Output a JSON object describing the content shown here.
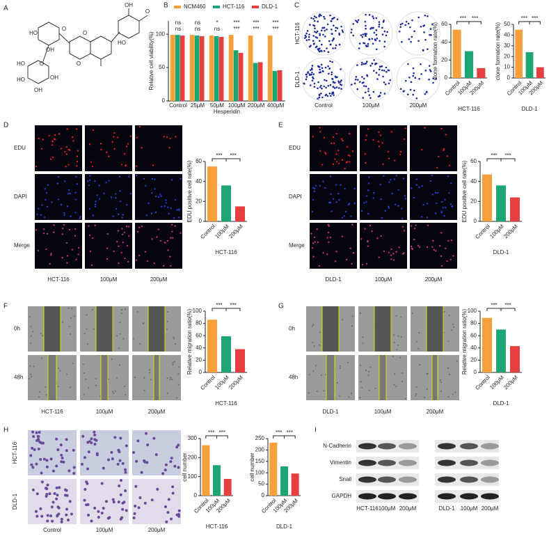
{
  "panel_labels": [
    "A",
    "B",
    "C",
    "D",
    "E",
    "F",
    "G",
    "H",
    "I"
  ],
  "panel_a": {
    "atoms": [
      "HO",
      "O",
      "OH",
      "O",
      "O",
      "HO",
      "OH",
      "O",
      "O",
      "HO",
      "HO",
      "OH",
      "OH"
    ]
  },
  "panel_c": {
    "rows": [
      "HCT-116",
      "DLD-1"
    ],
    "columns": [
      "Control",
      "100μM",
      "200μM"
    ]
  },
  "panel_d": {
    "rows": [
      "EDU",
      "DAPI",
      "Merge"
    ],
    "columns": [
      "HCT-116",
      "100μM",
      "200μM"
    ]
  },
  "panel_e": {
    "rows": [
      "EDU",
      "DAPI",
      "Merge"
    ],
    "columns": [
      "DLD-1",
      "100μM",
      "200μM"
    ]
  },
  "panel_f": {
    "rows": [
      "0h",
      "48h"
    ],
    "columns": [
      "HCT-116",
      "100μM",
      "200μM"
    ]
  },
  "panel_g": {
    "rows": [
      "0h",
      "48h"
    ],
    "columns": [
      "DLD-1",
      "100μM",
      "200μM"
    ]
  },
  "panel_h": {
    "rows": [
      "HCT-116",
      "DLD-1"
    ],
    "columns": [
      "Control",
      "100μM",
      "200μM"
    ]
  },
  "panel_i": {
    "rows": [
      "N-Cadherin",
      "Vimentin",
      "Snail",
      "GAPDH"
    ],
    "columns": [
      "HCT-116",
      "100μM",
      "200μM",
      "DLD-1",
      "100μM",
      "200μM"
    ]
  },
  "chart_data": [
    {
      "type": "bar",
      "ylabel": "Relative cell viability(%)",
      "xlabel": "Hesperidin",
      "categories": [
        "Control",
        "25μM",
        "50μM",
        "100μM",
        "200μM",
        "400μM"
      ],
      "series": [
        {
          "name": "NCM460",
          "color": "#f5a03b",
          "values": [
            99,
            99,
            98,
            99,
            98,
            98
          ]
        },
        {
          "name": "HCT-116",
          "color": "#1ba673",
          "values": [
            99,
            98,
            97,
            76,
            57,
            45
          ]
        },
        {
          "name": "DLD-1",
          "color": "#e5403f",
          "values": [
            98,
            97,
            96,
            72,
            58,
            46
          ]
        }
      ],
      "significance": [
        [
          "ns",
          "ns",
          "*",
          "***",
          "***",
          "***"
        ],
        [
          "ns",
          "ns",
          "ns",
          "***",
          "***",
          "***"
        ]
      ],
      "ylim": [
        0,
        120
      ],
      "yticks": [
        0,
        50,
        100
      ]
    },
    {
      "type": "bar",
      "ylabel": "clone formation rate(%)",
      "xlabel": "HCT-116",
      "categories": [
        "Control",
        "100μM",
        "200μM"
      ],
      "values": [
        54,
        30,
        11
      ],
      "colors": [
        "#f5a03b",
        "#1ba673",
        "#e5403f"
      ],
      "significance": [
        "***",
        "***"
      ],
      "ylim": [
        0,
        60
      ],
      "yticks": [
        0,
        20,
        40,
        60
      ]
    },
    {
      "type": "bar",
      "ylabel": "clone formation rate(%)",
      "xlabel": "DLD-1",
      "categories": [
        "Control",
        "100μM",
        "200μM"
      ],
      "values": [
        45,
        24,
        10
      ],
      "colors": [
        "#f5a03b",
        "#1ba673",
        "#e5403f"
      ],
      "significance": [
        "***",
        "***"
      ],
      "ylim": [
        0,
        50
      ],
      "yticks": [
        0,
        10,
        20,
        30,
        40,
        50
      ]
    },
    {
      "type": "bar",
      "ylabel": "EDU positive cell rate(%)",
      "xlabel": "HCT-116",
      "categories": [
        "Control",
        "100μM",
        "200μM"
      ],
      "values": [
        55,
        36,
        15
      ],
      "colors": [
        "#f5a03b",
        "#1ba673",
        "#e5403f"
      ],
      "significance": [
        "***",
        "***"
      ],
      "ylim": [
        0,
        60
      ],
      "yticks": [
        0,
        20,
        40,
        60
      ]
    },
    {
      "type": "bar",
      "ylabel": "EDU positive cell rate(%)",
      "xlabel": "DLD-1",
      "categories": [
        "Control",
        "100μM",
        "200μM"
      ],
      "values": [
        47,
        36,
        24
      ],
      "colors": [
        "#f5a03b",
        "#1ba673",
        "#e5403f"
      ],
      "significance": [
        "***",
        "***"
      ],
      "ylim": [
        0,
        60
      ],
      "yticks": [
        0,
        20,
        40,
        60
      ]
    },
    {
      "type": "bar",
      "ylabel": "Relative migration ratio(%)",
      "xlabel": "HCT-116",
      "categories": [
        "Control",
        "100μM",
        "200μM"
      ],
      "values": [
        86,
        59,
        38
      ],
      "colors": [
        "#f5a03b",
        "#1ba673",
        "#e5403f"
      ],
      "significance": [
        "***",
        "***"
      ],
      "ylim": [
        0,
        100
      ],
      "yticks": [
        0,
        20,
        40,
        60,
        80,
        100
      ]
    },
    {
      "type": "bar",
      "ylabel": "Relative migration ratio(%)",
      "xlabel": "DLD-1",
      "categories": [
        "Control",
        "100μM",
        "200μM"
      ],
      "values": [
        89,
        70,
        43
      ],
      "colors": [
        "#f5a03b",
        "#1ba673",
        "#e5403f"
      ],
      "significance": [
        "***",
        "***"
      ],
      "ylim": [
        0,
        100
      ],
      "yticks": [
        0,
        20,
        40,
        60,
        80,
        100
      ]
    },
    {
      "type": "bar",
      "ylabel": "cell number",
      "xlabel": "HCT-116",
      "categories": [
        "Control",
        "100μM",
        "200μM"
      ],
      "values": [
        265,
        160,
        88
      ],
      "colors": [
        "#f5a03b",
        "#1ba673",
        "#e5403f"
      ],
      "significance": [
        "***",
        "***"
      ],
      "ylim": [
        0,
        300
      ],
      "yticks": [
        0,
        100,
        200,
        300
      ]
    },
    {
      "type": "bar",
      "ylabel": "cell number",
      "xlabel": "DLD-1",
      "categories": [
        "Control",
        "100μM",
        "200μM"
      ],
      "values": [
        232,
        128,
        97
      ],
      "colors": [
        "#f5a03b",
        "#1ba673",
        "#e5403f"
      ],
      "significance": [
        "***",
        "***"
      ],
      "ylim": [
        0,
        250
      ],
      "yticks": [
        0,
        50,
        100,
        150,
        200,
        250
      ]
    }
  ]
}
